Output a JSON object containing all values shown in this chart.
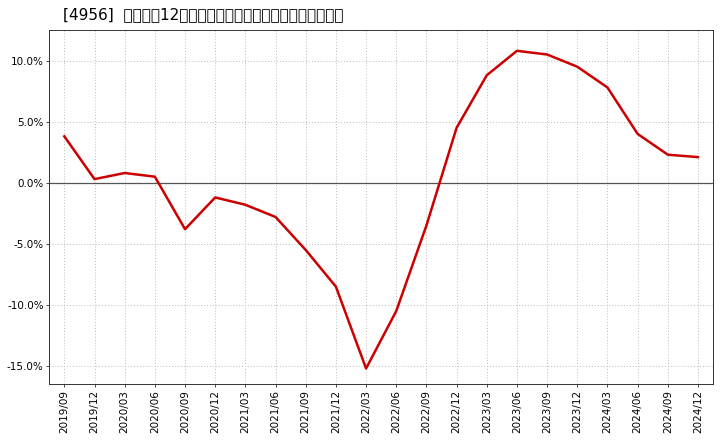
{
  "title": "[4956]  売上高の12か月移動合計の対前年同期増減率の推移",
  "line_color": "#cc0000",
  "background_color": "#ffffff",
  "plot_bg_color": "#ffffff",
  "grid_color": "#bbbbbb",
  "zero_line_color": "#555555",
  "x_labels": [
    "2019/09",
    "2019/12",
    "2020/03",
    "2020/06",
    "2020/09",
    "2020/12",
    "2021/03",
    "2021/06",
    "2021/09",
    "2021/12",
    "2022/03",
    "2022/06",
    "2022/09",
    "2022/12",
    "2023/03",
    "2023/06",
    "2023/09",
    "2023/12",
    "2024/03",
    "2024/06",
    "2024/09",
    "2024/12"
  ],
  "y_values": [
    3.8,
    0.3,
    0.8,
    0.5,
    -3.8,
    -1.2,
    -1.8,
    -2.8,
    -5.5,
    -8.5,
    -15.2,
    -10.5,
    -3.5,
    4.5,
    8.8,
    10.8,
    10.5,
    9.5,
    7.8,
    4.0,
    2.3,
    2.1
  ],
  "ylim": [
    -16.5,
    12.5
  ],
  "yticks": [
    -15.0,
    -10.0,
    -5.0,
    0.0,
    5.0,
    10.0
  ],
  "title_fontsize": 11,
  "tick_fontsize": 7.5,
  "line_width": 1.8
}
